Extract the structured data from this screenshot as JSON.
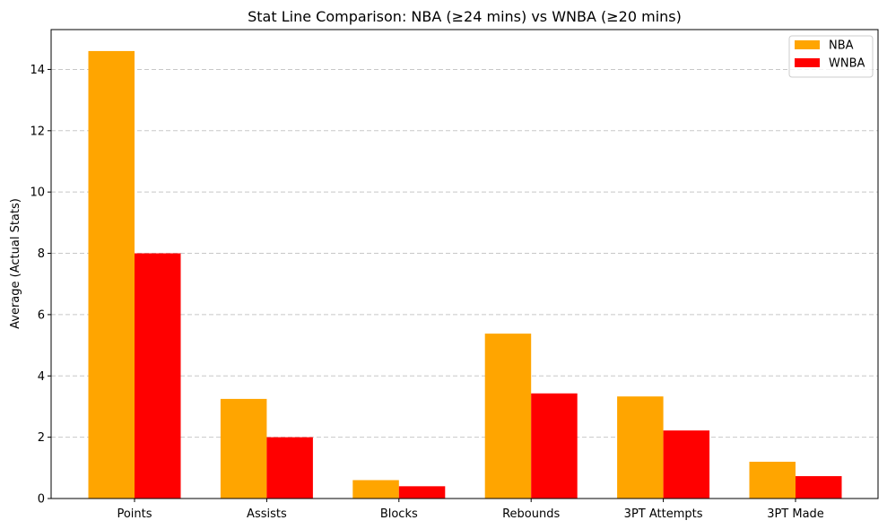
{
  "chart_data": {
    "type": "bar",
    "title": "Stat Line Comparison: NBA (≥24 mins) vs WNBA (≥20 mins)",
    "xlabel": "",
    "ylabel": "Average (Actual Stats)",
    "categories": [
      "Points",
      "Assists",
      "Blocks",
      "Rebounds",
      "3PT Attempts",
      "3PT Made"
    ],
    "series": [
      {
        "name": "NBA",
        "color": "#ffa500",
        "values": [
          14.6,
          3.25,
          0.6,
          5.38,
          3.33,
          1.2
        ]
      },
      {
        "name": "WNBA",
        "color": "#ff0000",
        "values": [
          8.0,
          2.0,
          0.4,
          3.43,
          2.22,
          0.73
        ]
      }
    ],
    "ylim": [
      0,
      15.3
    ],
    "yticks": [
      0,
      2,
      4,
      6,
      8,
      10,
      12,
      14
    ],
    "grid": "y-dashed",
    "legend": "top-right"
  }
}
